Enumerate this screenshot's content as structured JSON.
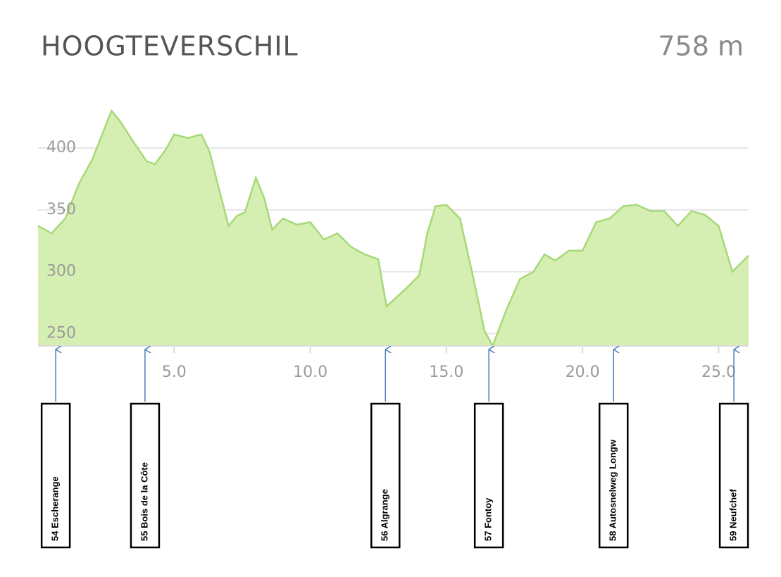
{
  "chart_data": {
    "type": "area",
    "title": "HOOGTEVERSCHIL",
    "summary": "758 m",
    "color": "#d5efb3",
    "line_color": "#a6d977",
    "grid": true,
    "x": [
      0,
      0.5,
      1,
      1.5,
      2,
      2.5,
      2.7,
      3,
      3.5,
      4,
      4.3,
      4.7,
      5,
      5.5,
      6,
      6.3,
      6.6,
      7,
      7.3,
      7.6,
      8,
      8.3,
      8.6,
      9,
      9.5,
      10,
      10.5,
      11,
      11.5,
      12,
      12.5,
      12.8,
      13.5,
      14,
      14.3,
      14.6,
      15,
      15.5,
      16,
      16.4,
      16.7,
      17.2,
      17.7,
      18.2,
      18.6,
      19,
      19.5,
      20,
      20.5,
      21,
      21.5,
      22,
      22.5,
      23,
      23.5,
      24,
      24.5,
      25,
      25.5,
      26.1
    ],
    "values": [
      337,
      331,
      343,
      371,
      391,
      419,
      430,
      422,
      405,
      389,
      387,
      399,
      411,
      408,
      411,
      397,
      371,
      337,
      345,
      348,
      376,
      360,
      334,
      343,
      338,
      340,
      326,
      331,
      320,
      314,
      310,
      272,
      286,
      297,
      331,
      353,
      354,
      343,
      294,
      252,
      240,
      269,
      294,
      300,
      314,
      309,
      317,
      317,
      340,
      343,
      353,
      354,
      349,
      349,
      337,
      349,
      346,
      337,
      300,
      313
    ],
    "xlim": [
      0,
      26.1
    ],
    "ylim": [
      240,
      445
    ],
    "xticks": [
      {
        "value": 5,
        "label": "5.0"
      },
      {
        "value": 10,
        "label": "10.0"
      },
      {
        "value": 15,
        "label": "15.0"
      },
      {
        "value": 20,
        "label": "20.0"
      },
      {
        "value": 25,
        "label": "25.0"
      }
    ],
    "yticks": [
      250,
      300,
      350,
      400
    ],
    "annotations": [
      {
        "label": "54  Escherange",
        "x": 0.65
      },
      {
        "label": "55  Bois de la Côte",
        "x": 3.93
      },
      {
        "label": "56  Algrange",
        "x": 12.76
      },
      {
        "label": "57  Fontoy",
        "x": 16.56
      },
      {
        "label": "58  Autosnelweg Longw",
        "x": 21.14
      },
      {
        "label": "59  Neufchef",
        "x": 25.56
      }
    ]
  }
}
